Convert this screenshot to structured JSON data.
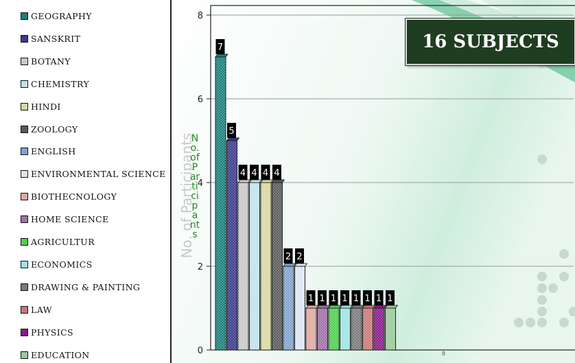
{
  "colors": {
    "accent_dark_green": "#1f3d20",
    "background_teal": "#8fd0b0"
  },
  "badge": {
    "label": "16 SUBJECTS"
  },
  "chart_data": {
    "type": "bar",
    "ylabel": "No. of Participants",
    "ylabel_overlay": "No. of Participants",
    "ylim": [
      0,
      8
    ],
    "yticks": [
      0,
      2,
      4,
      6,
      8
    ],
    "xtick_label": "8",
    "grid": true,
    "legend_position": "left",
    "categories": [
      "GEOGRAPHY",
      "SANSKRIT",
      "BOTANY",
      "CHEMISTRY",
      "HINDI",
      "ZOOLOGY",
      "ENGLISH",
      "ENVIRONMENTAL SCIENCE",
      "BIOTHECNOLOGY",
      "HOME SCIENCE",
      "AGRICULTUR",
      "ECONOMICS",
      "DRAWING & PAINTING",
      "LAW",
      "PHYSICS",
      "EDUCATION"
    ],
    "values": [
      7,
      5,
      4,
      4,
      4,
      4,
      2,
      2,
      1,
      1,
      1,
      1,
      1,
      1,
      1,
      1
    ],
    "colors": [
      "#1a7f7a",
      "#3a3a8c",
      "#c8c8c8",
      "#bfe3ea",
      "#d8d8a0",
      "#5a5a5a",
      "#7fa4cc",
      "#dce4ef",
      "#e0a8a0",
      "#a070a8",
      "#4fcf4f",
      "#9fe3e3",
      "#7a7a7a",
      "#c87878",
      "#8a1a8a",
      "#9ac89a"
    ]
  }
}
